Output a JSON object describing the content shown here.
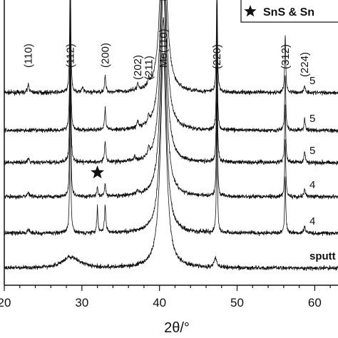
{
  "chart_data": {
    "type": "line",
    "xlabel": "2θ/°",
    "ylabel": "",
    "xlim": [
      20,
      63
    ],
    "x_ticks": [
      "20",
      "30",
      "40",
      "50",
      "60"
    ],
    "legend": {
      "marker": "star",
      "text": "SnS & Sn",
      "placement": "top-right"
    },
    "peak_labels": [
      {
        "text": "(110)",
        "x": 23.1
      },
      {
        "text": "(112)",
        "x": 28.5
      },
      {
        "text": "(200)",
        "x": 33.0
      },
      {
        "text": "(202)",
        "x": 37.2
      },
      {
        "text": "(211)",
        "x": 38.6
      },
      {
        "text": "Mo(110)",
        "x": 40.5
      },
      {
        "text": "(220)",
        "x": 47.4
      },
      {
        "text": "(312)",
        "x": 56.2
      },
      {
        "text": "(224)",
        "x": 58.7
      }
    ],
    "star_marker": {
      "x": 32.0
    },
    "series": [
      {
        "name": "5",
        "offset_rank": 6
      },
      {
        "name": "5",
        "offset_rank": 5
      },
      {
        "name": "5",
        "offset_rank": 4
      },
      {
        "name": "4",
        "offset_rank": 3
      },
      {
        "name": "4",
        "offset_rank": 2
      },
      {
        "name": "sputt",
        "offset_rank": 1
      }
    ]
  }
}
